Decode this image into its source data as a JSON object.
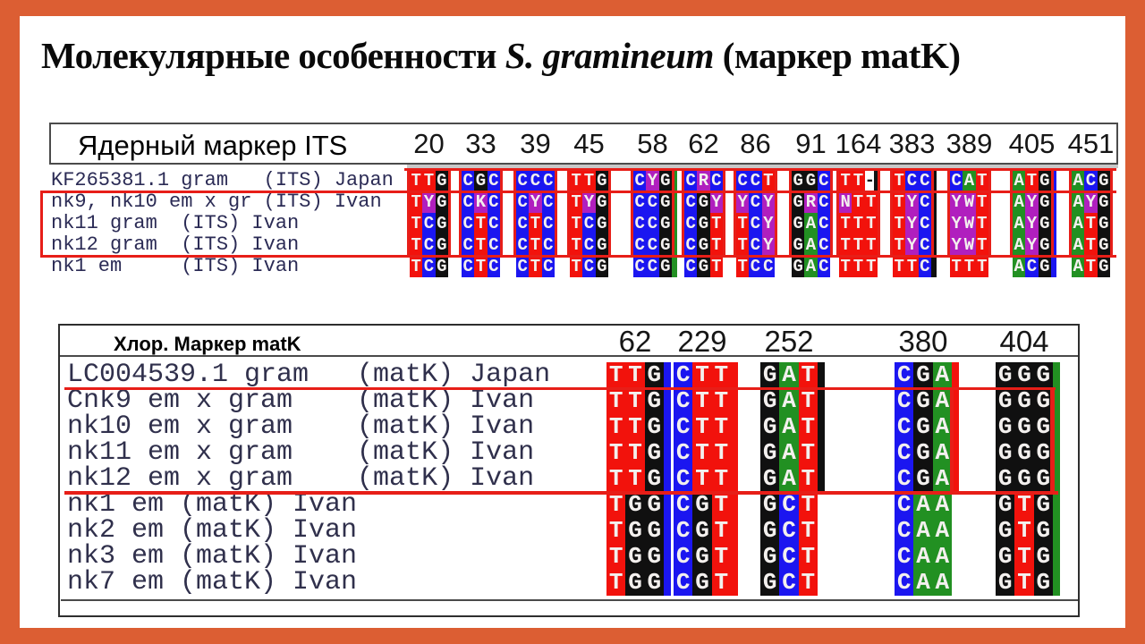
{
  "title": {
    "prefix": "Молекулярные особенности ",
    "species": "S. gramineum",
    "suffix": " (маркер matK)"
  },
  "frame_color": "#dc5e33",
  "annotation_color": "#e71e18",
  "nucleotide_colors": {
    "T": "#f2120c",
    "C": "#1b16f0",
    "G": "#101010",
    "A": "#229022",
    "ambiguous": "#b01fbe",
    "letter": "#f3f0ee",
    "gap_background": "#ffffff",
    "gap_text": "#141414"
  },
  "its_table": {
    "header": "Ядерный маркер ITS",
    "positions": [
      "20",
      "33",
      "39",
      "45",
      "58",
      "62",
      "86",
      "91",
      "164",
      "383",
      "389",
      "405",
      "451"
    ],
    "rows": [
      {
        "name": "KF265381.1 gram   (ITS) Japan",
        "codons": [
          "TTG",
          "CGC",
          "CCC",
          "TTG",
          "CYG",
          "CRC",
          "CCT",
          "GGC",
          "TT-",
          "TCC",
          "CAT",
          "ATG",
          "ACG"
        ],
        "trails": [
          "",
          "",
          "",
          "",
          "A",
          "",
          "",
          "",
          "",
          "G",
          "",
          "C",
          ""
        ]
      },
      {
        "name": "nk9, nk10 em x gr (ITS) Ivan",
        "codons": [
          "TYG",
          "CKC",
          "CYC",
          "TYG",
          "CCG",
          "CGY",
          "YCY",
          "GRC",
          "NTT",
          "TYC",
          "YWT",
          "AYG",
          "AYG"
        ],
        "trails": [
          "",
          "",
          "",
          "",
          "A",
          "",
          "",
          "",
          "",
          "G",
          "",
          "C",
          ""
        ]
      },
      {
        "name": "nk11 gram  (ITS) Ivan",
        "codons": [
          "TCG",
          "CTC",
          "CTC",
          "TCG",
          "CCG",
          "CGT",
          "TCY",
          "GAC",
          "TTT",
          "TYC",
          "YWT",
          "AYG",
          "ATG"
        ],
        "trails": [
          "",
          "",
          "",
          "",
          "A",
          "",
          "",
          "",
          "",
          "G",
          "",
          "C",
          ""
        ]
      },
      {
        "name": "nk12 gram  (ITS) Ivan",
        "codons": [
          "TCG",
          "CTC",
          "CTC",
          "TCG",
          "CCG",
          "CGT",
          "TCY",
          "GAC",
          "TTT",
          "TYC",
          "YWT",
          "AYG",
          "ATG"
        ],
        "trails": [
          "",
          "",
          "",
          "",
          "A",
          "",
          "",
          "",
          "",
          "G",
          "",
          "C",
          ""
        ]
      },
      {
        "name": "nk1 em     (ITS) Ivan",
        "codons": [
          "TCG",
          "CTC",
          "CTC",
          "TCG",
          "CCG",
          "CGT",
          "TCC",
          "GAC",
          "TTT",
          "TTC",
          "TTT",
          "ACG",
          "ATG"
        ],
        "trails": [
          "",
          "",
          "",
          "",
          "A",
          "",
          "",
          "",
          "",
          "G",
          "",
          "C",
          ""
        ]
      }
    ]
  },
  "matk_table": {
    "header": "Хлор. Маркер matK",
    "positions": [
      "62",
      "229",
      "252",
      "380",
      "404"
    ],
    "rows": [
      {
        "name": "LC004539.1 gram   (matK) Japan",
        "codons": [
          "TTG",
          "CTT",
          "GAT",
          "CGA",
          "GGG"
        ],
        "trails": [
          "C",
          "T",
          "G",
          "T",
          "A"
        ]
      },
      {
        "name": "Cnk9 em x gram    (matK) Ivan",
        "codons": [
          "TTG",
          "CTT",
          "GAT",
          "CGA",
          "GGG"
        ],
        "trails": [
          "C",
          "T",
          "G",
          "T",
          "A"
        ]
      },
      {
        "name": "nk10 em x gram    (matK) Ivan",
        "codons": [
          "TTG",
          "CTT",
          "GAT",
          "CGA",
          "GGG"
        ],
        "trails": [
          "C",
          "T",
          "G",
          "T",
          "A"
        ]
      },
      {
        "name": "nk11 em x gram    (matK) Ivan",
        "codons": [
          "TTG",
          "CTT",
          "GAT",
          "CGA",
          "GGG"
        ],
        "trails": [
          "C",
          "T",
          "G",
          "T",
          "A"
        ]
      },
      {
        "name": "nk12 em x gram    (matK) Ivan",
        "codons": [
          "TTG",
          "CTT",
          "GAT",
          "CGA",
          "GGG"
        ],
        "trails": [
          "C",
          "T",
          "G",
          "T",
          "A"
        ]
      },
      {
        "name": "nk1 em (matK) Ivan",
        "codons": [
          "TGG",
          "CGT",
          "GCT",
          "CAA",
          "GTG"
        ],
        "trails": [
          "C",
          "T",
          "",
          "",
          "A"
        ]
      },
      {
        "name": "nk2 em (matK) Ivan",
        "codons": [
          "TGG",
          "CGT",
          "GCT",
          "CAA",
          "GTG"
        ],
        "trails": [
          "C",
          "T",
          "",
          "",
          "A"
        ]
      },
      {
        "name": "nk3 em (matK) Ivan",
        "codons": [
          "TGG",
          "CGT",
          "GCT",
          "CAA",
          "GTG"
        ],
        "trails": [
          "C",
          "T",
          "",
          "",
          "A"
        ]
      },
      {
        "name": "nk7 em (matK) Ivan",
        "codons": [
          "TGG",
          "CGT",
          "GCT",
          "CAA",
          "GTG"
        ],
        "trails": [
          "C",
          "T",
          "",
          "",
          "A"
        ]
      }
    ]
  }
}
